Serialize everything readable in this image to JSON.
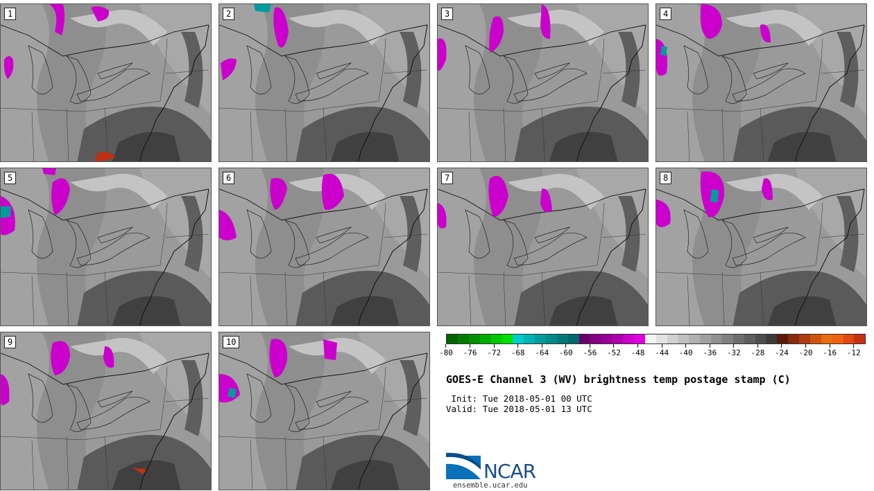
{
  "title": "GOES-E Channel 3 (WV) brightness temp postage stamp (C)",
  "init_label": " Init:",
  "init_value": "Tue 2018-05-01 00 UTC",
  "valid_label": "Valid:",
  "valid_value": "Tue 2018-05-01 13 UTC",
  "site": "ensemble.ucar.edu",
  "logo_text": "NCAR",
  "panels": [
    "1",
    "2",
    "3",
    "4",
    "5",
    "6",
    "7",
    "8",
    "9",
    "10"
  ],
  "colorbar": {
    "ticks": [
      "-80",
      "-76",
      "-72",
      "-68",
      "-64",
      "-60",
      "-56",
      "-52",
      "-48",
      "-44",
      "-40",
      "-36",
      "-32",
      "-28",
      "-24",
      "-20",
      "-16",
      "-12"
    ],
    "colors": [
      "#006400",
      "#007a00",
      "#009000",
      "#00aa00",
      "#00c800",
      "#00e000",
      "#00cccc",
      "#00b4b4",
      "#009c9c",
      "#008a8a",
      "#007878",
      "#006a6a",
      "#6a006a",
      "#800080",
      "#960096",
      "#ac00ac",
      "#c800c8",
      "#e000e0",
      "#f4f4f4",
      "#e2e2e2",
      "#d0d0d0",
      "#c0c0c0",
      "#b0b0b0",
      "#a0a0a0",
      "#909090",
      "#808080",
      "#6e6e6e",
      "#5e5e5e",
      "#4e4e4e",
      "#3c3c3c",
      "#5a1a08",
      "#8a2a0c",
      "#b03c10",
      "#d05410",
      "#e86c10",
      "#f06010",
      "#e04810",
      "#c83010"
    ]
  }
}
